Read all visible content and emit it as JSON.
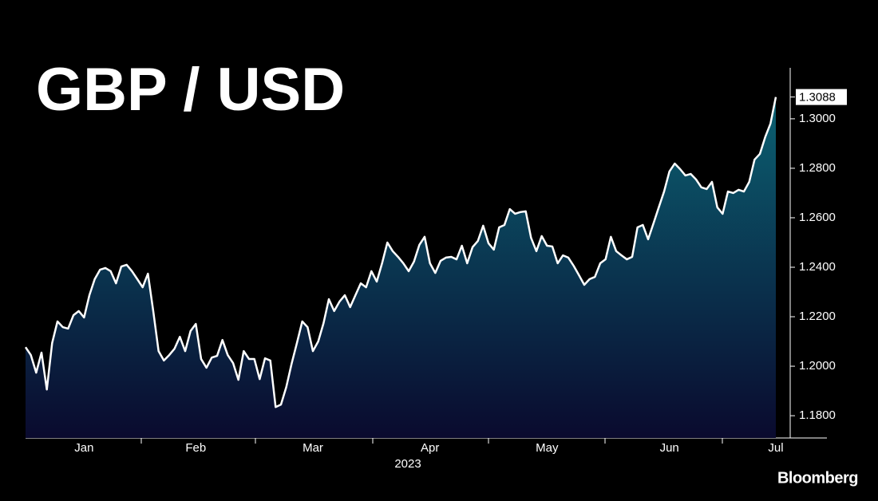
{
  "chart_data": {
    "type": "area",
    "title": "GBP / USD",
    "xlabel": "2023",
    "source": "Bloomberg",
    "color": "#ffffff",
    "fill_top": "#0b6172",
    "fill_bottom": "#0a0a2e",
    "categories": [
      null,
      null,
      null,
      null,
      null,
      null,
      null,
      null,
      null,
      null,
      null,
      "Jan",
      null,
      null,
      null,
      null,
      null,
      null,
      null,
      null,
      null,
      null,
      null,
      null,
      null,
      null,
      null,
      null,
      null,
      null,
      null,
      null,
      "Feb",
      null,
      null,
      null,
      null,
      null,
      null,
      null,
      null,
      null,
      null,
      null,
      null,
      null,
      null,
      null,
      null,
      null,
      null,
      null,
      null,
      null,
      "Mar",
      null,
      null,
      null,
      null,
      null,
      null,
      null,
      null,
      null,
      null,
      null,
      null,
      null,
      null,
      null,
      null,
      null,
      null,
      null,
      null,
      null,
      "Apr",
      null,
      null,
      null,
      null,
      null,
      null,
      null,
      null,
      null,
      null,
      null,
      null,
      null,
      null,
      null,
      null,
      null,
      null,
      null,
      null,
      null,
      "May",
      null,
      null,
      null,
      null,
      null,
      null,
      null,
      null,
      null,
      null,
      null,
      null,
      null,
      null,
      null,
      null,
      null,
      null,
      null,
      null,
      null,
      null,
      "Jun",
      null,
      null,
      null,
      null,
      null,
      null,
      null,
      null,
      null,
      null,
      null,
      null,
      null,
      null,
      null,
      null,
      null,
      null,
      null,
      "Jul"
    ],
    "values": [
      1.2077,
      1.2045,
      1.1974,
      1.2055,
      1.1906,
      1.2094,
      1.2181,
      1.2158,
      1.2152,
      1.2206,
      1.2223,
      1.2197,
      1.2287,
      1.2352,
      1.239,
      1.2397,
      1.2384,
      1.2335,
      1.2403,
      1.241,
      1.2384,
      1.2352,
      1.2319,
      1.2374,
      1.2223,
      1.2061,
      1.2023,
      1.2045,
      1.2071,
      1.2119,
      1.2061,
      1.2142,
      1.2171,
      1.2029,
      1.1994,
      1.2035,
      1.2042,
      1.2106,
      1.2045,
      1.2013,
      1.1945,
      1.2061,
      1.2029,
      1.2029,
      1.1948,
      1.2032,
      1.2023,
      1.1835,
      1.1845,
      1.1916,
      1.201,
      1.2094,
      1.2181,
      1.2158,
      1.2061,
      1.21,
      1.2174,
      1.2271,
      1.2223,
      1.2261,
      1.2287,
      1.2239,
      1.2287,
      1.2335,
      1.2319,
      1.2384,
      1.2342,
      1.2416,
      1.25,
      1.2465,
      1.2442,
      1.2416,
      1.2384,
      1.2423,
      1.249,
      1.2523,
      1.2416,
      1.2377,
      1.2426,
      1.2439,
      1.2442,
      1.2432,
      1.2487,
      1.2416,
      1.2481,
      1.2506,
      1.2568,
      1.2497,
      1.2471,
      1.2561,
      1.2571,
      1.2635,
      1.2616,
      1.2623,
      1.2626,
      1.2519,
      1.2465,
      1.2526,
      1.2487,
      1.2484,
      1.2416,
      1.2448,
      1.2439,
      1.2406,
      1.2368,
      1.2329,
      1.2352,
      1.2361,
      1.2416,
      1.2432,
      1.2523,
      1.2465,
      1.2448,
      1.2432,
      1.2442,
      1.2561,
      1.2571,
      1.2513,
      1.2577,
      1.2642,
      1.2706,
      1.2787,
      1.2819,
      1.2797,
      1.2771,
      1.2777,
      1.2755,
      1.2723,
      1.2716,
      1.2745,
      1.2642,
      1.2616,
      1.2706,
      1.27,
      1.2713,
      1.2706,
      1.2745,
      1.2835,
      1.2858,
      1.2926,
      1.2981,
      1.3088
    ],
    "ylim": [
      1.171,
      1.3206
    ],
    "yticks": [
      {
        "value": 1.18,
        "label": "1.1800"
      },
      {
        "value": 1.2,
        "label": "1.2000"
      },
      {
        "value": 1.22,
        "label": "1.2200"
      },
      {
        "value": 1.24,
        "label": "1.2400"
      },
      {
        "value": 1.26,
        "label": "1.2600"
      },
      {
        "value": 1.28,
        "label": "1.2800"
      },
      {
        "value": 1.3,
        "label": "1.3000"
      }
    ],
    "y_axis_side": "right",
    "grid": false
  }
}
